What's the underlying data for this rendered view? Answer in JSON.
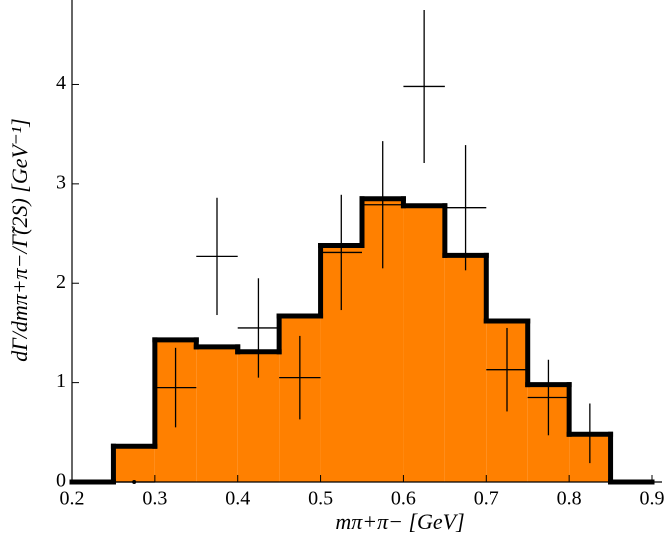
{
  "chart_data": {
    "type": "histogram",
    "x_label": "mπ+π− [GeV]",
    "y_label": "dΓ/dmπ+π−/Γ̃(2S) [GeV⁻¹]",
    "bins": [
      0.2,
      0.25,
      0.3,
      0.35,
      0.4,
      0.45,
      0.5,
      0.55,
      0.6,
      0.65,
      0.7,
      0.75,
      0.8,
      0.85,
      0.9
    ],
    "values": [
      0,
      0.36,
      1.43,
      1.36,
      1.31,
      1.67,
      2.38,
      2.85,
      2.78,
      2.28,
      1.62,
      0.98,
      0.48,
      0
    ],
    "color": "#ff8000",
    "edge_color": "#000000",
    "points": {
      "x": [
        0.275,
        0.325,
        0.375,
        0.425,
        0.475,
        0.525,
        0.575,
        0.625,
        0.675,
        0.725,
        0.775,
        0.825
      ],
      "values": [
        0,
        0.95,
        2.27,
        1.55,
        1.05,
        2.31,
        2.79,
        3.98,
        2.76,
        1.13,
        0.85,
        0.49
      ],
      "errors": [
        0,
        0.4,
        0.59,
        0.5,
        0.42,
        0.58,
        0.64,
        0.77,
        0.63,
        0.42,
        0.38,
        0.3
      ]
    },
    "xlim": [
      0.2,
      0.9
    ],
    "xticks": [
      0.2,
      0.3,
      0.4,
      0.5,
      0.6,
      0.7,
      0.8,
      0.9
    ],
    "ylim": [
      0,
      4.85
    ],
    "yticks": [
      0,
      1,
      2,
      3,
      4
    ]
  }
}
